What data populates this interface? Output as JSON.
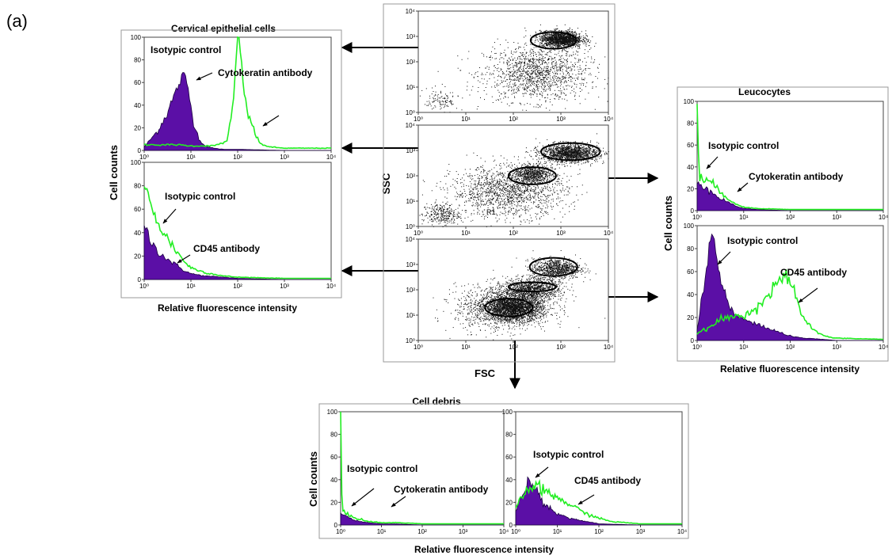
{
  "panel_label": "(a)",
  "axis_labels": {
    "cell_counts": "Cell counts",
    "rel_fluor": "Relative fluorescence intensity",
    "ssc": "SSC",
    "fsc": "FSC",
    "gate_r1": "R1"
  },
  "group_titles": {
    "epithelial": "Cervical epithelial cells",
    "leucocytes": "Leucocytes",
    "debris": "Cell debris"
  },
  "legend": {
    "isotypic": "Isotypic control",
    "cytokeratin": "Cytokeratin antibody",
    "cd45": "CD45 antibody"
  },
  "colors": {
    "isotypic_fill": "#5b0fa6",
    "antibody_line": "#22ee22",
    "scatter_dot": "#111111"
  },
  "chart_data": [
    {
      "type": "area",
      "id": "epi_cytokeratin",
      "xscale": "log",
      "xlim": [
        1,
        10000
      ],
      "xticks": [
        "10⁰",
        "10¹",
        "10²",
        "10³",
        "10⁴"
      ],
      "yticks": [
        "0",
        "20",
        "40",
        "60",
        "80",
        "100"
      ],
      "ylim": [
        0,
        100
      ],
      "series": [
        {
          "name": "Isotypic control",
          "style": "filled",
          "x": [
            1,
            2,
            3,
            4,
            5,
            6,
            7,
            8,
            9,
            10,
            12,
            15,
            20,
            30,
            50,
            100,
            1000,
            10000
          ],
          "y": [
            3,
            18,
            32,
            44,
            54,
            62,
            66,
            62,
            52,
            38,
            22,
            10,
            4,
            2,
            1,
            1,
            0,
            0
          ]
        },
        {
          "name": "Cytokeratin antibody",
          "style": "line",
          "x": [
            1,
            5,
            10,
            30,
            60,
            80,
            100,
            120,
            140,
            170,
            200,
            250,
            300,
            500,
            1000,
            10000
          ],
          "y": [
            5,
            5,
            4,
            4,
            8,
            40,
            100,
            85,
            45,
            30,
            25,
            12,
            6,
            3,
            2,
            2
          ]
        }
      ]
    },
    {
      "type": "area",
      "id": "epi_cd45",
      "xscale": "log",
      "xlim": [
        1,
        10000
      ],
      "xticks": [
        "10⁰",
        "10¹",
        "10²",
        "10³",
        "10⁴"
      ],
      "yticks": [
        "0",
        "20",
        "40",
        "60",
        "80",
        "100"
      ],
      "ylim": [
        0,
        100
      ],
      "series": [
        {
          "name": "Isotypic control",
          "style": "filled",
          "x": [
            1,
            1.5,
            2,
            3,
            5,
            7,
            10,
            20,
            50,
            100,
            1000,
            10000
          ],
          "y": [
            45,
            30,
            24,
            18,
            12,
            8,
            5,
            3,
            2,
            1,
            0,
            0
          ]
        },
        {
          "name": "CD45 antibody",
          "style": "line",
          "x": [
            1,
            1.5,
            2,
            3,
            5,
            7,
            10,
            20,
            50,
            100,
            1000,
            10000
          ],
          "y": [
            82,
            58,
            48,
            36,
            24,
            16,
            10,
            6,
            3,
            2,
            1,
            1
          ]
        }
      ]
    },
    {
      "type": "scatter",
      "id": "fsc_ssc_1",
      "xscale": "log",
      "yscale": "log",
      "xlim": [
        1,
        10000
      ],
      "ylim": [
        1,
        10000
      ],
      "xticks": [
        "10⁰",
        "10¹",
        "10²",
        "10³",
        "10⁴"
      ],
      "yticks": [
        "10⁰",
        "10¹",
        "10²",
        "10³",
        "10⁴"
      ],
      "clusters": [
        {
          "cx": 300,
          "cy": 35,
          "sx": 0.55,
          "sy": 0.55,
          "n": 1400
        },
        {
          "cx": 1000,
          "cy": 800,
          "sx": 0.22,
          "sy": 0.16,
          "n": 1700
        },
        {
          "cx": 3,
          "cy": 3,
          "sx": 0.18,
          "sy": 0.25,
          "n": 120
        }
      ],
      "gates": [
        {
          "cx": 700,
          "cy": 700,
          "rx": 0.48,
          "ry": 0.33
        }
      ]
    },
    {
      "type": "scatter",
      "id": "fsc_ssc_2",
      "xscale": "log",
      "yscale": "log",
      "xlim": [
        1,
        10000
      ],
      "ylim": [
        1,
        10000
      ],
      "xticks": [
        "10⁰",
        "10¹",
        "10²",
        "10³",
        "10⁴"
      ],
      "yticks": [
        "10⁰",
        "10¹",
        "10²",
        "10³",
        "10⁴"
      ],
      "clusters": [
        {
          "cx": 80,
          "cy": 25,
          "sx": 0.6,
          "sy": 0.5,
          "n": 1500
        },
        {
          "cx": 1500,
          "cy": 800,
          "sx": 0.3,
          "sy": 0.18,
          "n": 1600
        },
        {
          "cx": 250,
          "cy": 120,
          "sx": 0.2,
          "sy": 0.2,
          "n": 700
        },
        {
          "cx": 3,
          "cy": 3,
          "sx": 0.2,
          "sy": 0.22,
          "n": 300
        }
      ],
      "gates": [
        {
          "cx": 1600,
          "cy": 900,
          "rx": 0.62,
          "ry": 0.34
        },
        {
          "cx": 250,
          "cy": 100,
          "rx": 0.5,
          "ry": 0.34
        }
      ]
    },
    {
      "type": "scatter",
      "id": "fsc_ssc_3",
      "xscale": "log",
      "yscale": "log",
      "xlim": [
        1,
        10000
      ],
      "ylim": [
        1,
        10000
      ],
      "xticks": [
        "10⁰",
        "10¹",
        "10²",
        "10³",
        "10⁴"
      ],
      "yticks": [
        "10⁰",
        "10¹",
        "10²",
        "10³",
        "10⁴"
      ],
      "clusters": [
        {
          "cx": 60,
          "cy": 20,
          "sx": 0.5,
          "sy": 0.45,
          "n": 1200
        },
        {
          "cx": 100,
          "cy": 20,
          "sx": 0.3,
          "sy": 0.25,
          "n": 2200
        },
        {
          "cx": 250,
          "cy": 110,
          "sx": 0.3,
          "sy": 0.22,
          "n": 1100
        },
        {
          "cx": 800,
          "cy": 700,
          "sx": 0.25,
          "sy": 0.2,
          "n": 900
        }
      ],
      "gates": [
        {
          "cx": 700,
          "cy": 800,
          "rx": 0.5,
          "ry": 0.36
        },
        {
          "cx": 250,
          "cy": 130,
          "rx": 0.5,
          "ry": 0.18
        },
        {
          "cx": 80,
          "cy": 20,
          "rx": 0.5,
          "ry": 0.35
        }
      ]
    },
    {
      "type": "area",
      "id": "leuco_cytokeratin",
      "xscale": "log",
      "xlim": [
        1,
        10000
      ],
      "xticks": [
        "10⁰",
        "10¹",
        "10²",
        "10³",
        "10⁴"
      ],
      "yticks": [
        "0",
        "20",
        "40",
        "60",
        "80",
        "100"
      ],
      "ylim": [
        0,
        100
      ],
      "series": [
        {
          "name": "Isotypic control",
          "style": "filled",
          "x": [
            1,
            1.5,
            2,
            3,
            5,
            7,
            10,
            20,
            100,
            1000,
            10000
          ],
          "y": [
            26,
            22,
            18,
            12,
            7,
            4,
            2,
            1,
            0,
            0,
            0
          ]
        },
        {
          "name": "Cytokeratin antibody",
          "style": "line",
          "x": [
            1,
            1.1,
            1.5,
            2,
            3,
            5,
            7,
            10,
            20,
            100,
            1000,
            10000
          ],
          "y": [
            100,
            30,
            28,
            25,
            18,
            10,
            6,
            3,
            2,
            1,
            1,
            1
          ]
        }
      ]
    },
    {
      "type": "area",
      "id": "leuco_cd45",
      "xscale": "log",
      "xlim": [
        1,
        10000
      ],
      "xticks": [
        "10⁰",
        "10¹",
        "10²",
        "10³",
        "10⁴"
      ],
      "yticks": [
        "0",
        "20",
        "40",
        "60",
        "80",
        "100"
      ],
      "ylim": [
        0,
        100
      ],
      "series": [
        {
          "name": "Isotypic control",
          "style": "filled",
          "x": [
            1,
            1.5,
            2,
            2.5,
            3,
            4,
            5,
            7,
            10,
            20,
            50,
            100,
            200,
            500,
            1000,
            10000
          ],
          "y": [
            10,
            55,
            95,
            78,
            60,
            40,
            28,
            22,
            18,
            14,
            8,
            4,
            2,
            1,
            0,
            0
          ]
        },
        {
          "name": "CD45 antibody",
          "style": "line",
          "x": [
            1,
            2,
            3,
            5,
            10,
            20,
            40,
            60,
            80,
            100,
            150,
            200,
            400,
            700,
            1000,
            10000
          ],
          "y": [
            6,
            12,
            18,
            20,
            22,
            30,
            42,
            52,
            58,
            50,
            30,
            18,
            6,
            3,
            2,
            1
          ]
        }
      ]
    },
    {
      "type": "area",
      "id": "debris_cytokeratin",
      "xscale": "log",
      "xlim": [
        1,
        10000
      ],
      "xticks": [
        "10⁰",
        "10¹",
        "10²",
        "10³",
        "10⁴"
      ],
      "yticks": [
        "0",
        "20",
        "40",
        "60",
        "80",
        "100"
      ],
      "ylim": [
        0,
        100
      ],
      "series": [
        {
          "name": "Isotypic control",
          "style": "filled",
          "x": [
            1,
            1.5,
            2,
            3,
            5,
            10,
            20,
            100,
            10000
          ],
          "y": [
            10,
            7,
            5,
            3,
            2,
            1,
            1,
            0,
            0
          ]
        },
        {
          "name": "Cytokeratin antibody",
          "style": "line",
          "x": [
            1,
            1.08,
            1.3,
            2,
            3,
            5,
            10,
            30,
            100,
            1000,
            10000
          ],
          "y": [
            100,
            14,
            10,
            7,
            5,
            3,
            2,
            2,
            1,
            1,
            1
          ]
        }
      ]
    },
    {
      "type": "area",
      "id": "debris_cd45",
      "xscale": "log",
      "xlim": [
        1,
        10000
      ],
      "xticks": [
        "10⁰",
        "10¹",
        "10²",
        "10³",
        "10⁴"
      ],
      "yticks": [
        "0",
        "20",
        "40",
        "60",
        "80",
        "100"
      ],
      "ylim": [
        0,
        100
      ],
      "series": [
        {
          "name": "Isotypic control",
          "style": "filled",
          "x": [
            1,
            1.5,
            2,
            3,
            4,
            6,
            10,
            20,
            50,
            100,
            1000,
            10000
          ],
          "y": [
            12,
            28,
            40,
            32,
            24,
            16,
            10,
            6,
            3,
            1,
            0,
            0
          ]
        },
        {
          "name": "CD45 antibody",
          "style": "line",
          "x": [
            1,
            1.5,
            2,
            3,
            4,
            6,
            10,
            20,
            50,
            100,
            200,
            1000,
            10000
          ],
          "y": [
            14,
            26,
            32,
            34,
            32,
            28,
            24,
            18,
            10,
            6,
            3,
            1,
            1
          ]
        }
      ]
    }
  ]
}
